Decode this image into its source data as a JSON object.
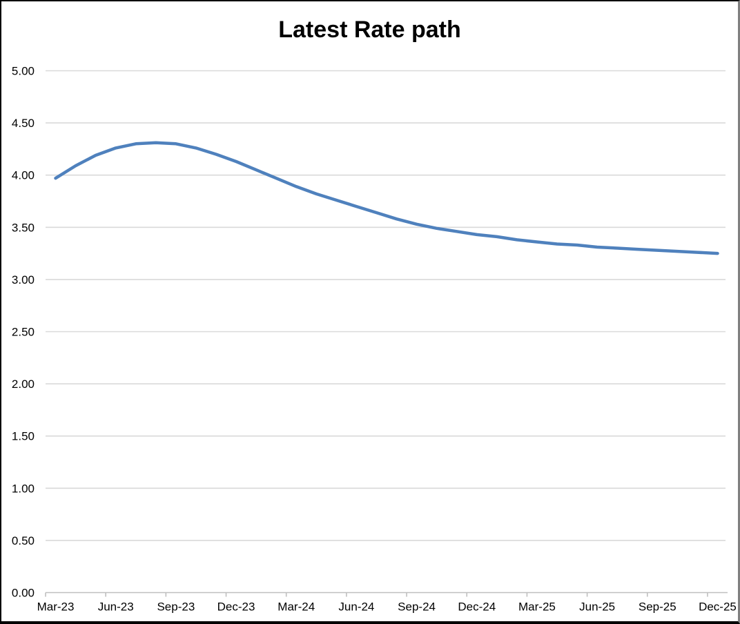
{
  "chart_data": {
    "type": "line",
    "title": "Latest Rate path",
    "legend": "none",
    "grid": "horizontal",
    "x": [
      "Mar-23",
      "Apr-23",
      "May-23",
      "Jun-23",
      "Jul-23",
      "Aug-23",
      "Sep-23",
      "Oct-23",
      "Nov-23",
      "Dec-23",
      "Jan-24",
      "Feb-24",
      "Mar-24",
      "Apr-24",
      "May-24",
      "Jun-24",
      "Jul-24",
      "Aug-24",
      "Sep-24",
      "Oct-24",
      "Nov-24",
      "Dec-24",
      "Jan-25",
      "Feb-25",
      "Mar-25",
      "Apr-25",
      "May-25",
      "Jun-25",
      "Jul-25",
      "Aug-25",
      "Sep-25",
      "Oct-25",
      "Nov-25",
      "Dec-25"
    ],
    "values": [
      3.97,
      4.09,
      4.19,
      4.26,
      4.3,
      4.31,
      4.3,
      4.26,
      4.2,
      4.13,
      4.05,
      3.97,
      3.89,
      3.82,
      3.76,
      3.7,
      3.64,
      3.58,
      3.53,
      3.49,
      3.46,
      3.43,
      3.41,
      3.38,
      3.36,
      3.34,
      3.33,
      3.31,
      3.3,
      3.29,
      3.28,
      3.27,
      3.26,
      3.25
    ],
    "series_name": "Latest Rate path",
    "x_tick_labels": [
      "Mar-23",
      "Jun-23",
      "Sep-23",
      "Dec-23",
      "Mar-24",
      "Jun-24",
      "Sep-24",
      "Dec-24",
      "Mar-25",
      "Jun-25",
      "Sep-25",
      "Dec-25"
    ],
    "x_tick_every": 3,
    "y_axis": {
      "min": 0,
      "max": 5,
      "step": 0.5,
      "labels": [
        "0.00",
        "0.50",
        "1.00",
        "1.50",
        "2.00",
        "2.50",
        "3.00",
        "3.50",
        "4.00",
        "4.50",
        "5.00"
      ]
    },
    "ylim": [
      0,
      5
    ],
    "colors": {
      "line": "#4F81BD",
      "gridline": "#D9D9D9",
      "axis": "#BFBFBF",
      "text": "#000000",
      "background": "#FFFFFF"
    }
  }
}
